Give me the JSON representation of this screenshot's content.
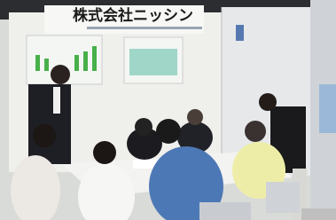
{
  "sign": {
    "title": "株式会社ニッシン"
  }
}
